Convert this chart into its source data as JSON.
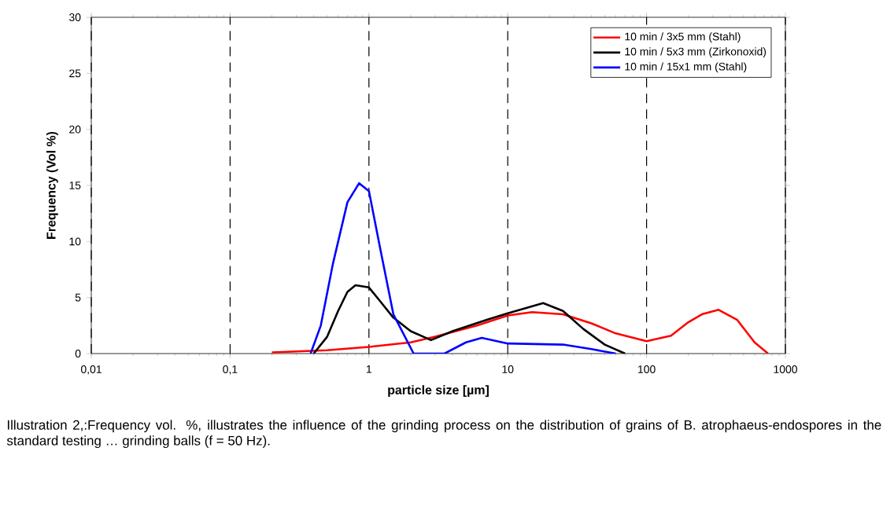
{
  "chart_data": {
    "type": "line",
    "xlabel": "particle size  [µm]",
    "ylabel": "Frequency (Vol %)",
    "log": "x",
    "grid": "x",
    "legend": "top right",
    "marker": "none",
    "line_style": "solid",
    "xlim": [
      0.01,
      1000
    ],
    "xticks": [
      {
        "value": 0.01,
        "label": "0,01"
      },
      {
        "value": 0.1,
        "label": "0,1"
      },
      1,
      10,
      100,
      1000
    ],
    "ylim": [
      0,
      30
    ],
    "yticks": [
      0,
      5,
      10,
      15,
      20,
      25,
      30
    ],
    "series": [
      {
        "name": "10 min / 3x5 mm (Stahl)",
        "color": "#ff0000",
        "x": [
          0.2,
          0.5,
          1,
          2,
          3,
          6,
          10,
          15,
          25,
          40,
          60,
          100,
          150,
          200,
          250,
          330,
          450,
          600,
          750
        ],
        "values": [
          0.1,
          0.3,
          0.6,
          1,
          1.5,
          2.5,
          3.4,
          3.7,
          3.5,
          2.7,
          1.8,
          1.1,
          1.6,
          2.8,
          3.5,
          3.9,
          3,
          1,
          0
        ]
      },
      {
        "name": "10 min / 5x3 mm (Zirkonoxid)",
        "color": "#000000",
        "x": [
          0.4,
          0.5,
          0.6,
          0.7,
          0.8,
          1,
          1.2,
          1.5,
          2,
          2.8,
          4,
          7,
          10,
          18,
          25,
          35,
          50,
          70
        ],
        "values": [
          0,
          1.5,
          3.8,
          5.5,
          6.1,
          5.9,
          4.7,
          3.2,
          2,
          1.2,
          2,
          3,
          3.6,
          4.5,
          3.8,
          2.2,
          0.8,
          0
        ]
      },
      {
        "name": "10 min / 15x1 mm (Stahl)",
        "color": "#0000ff",
        "x": [
          0.38,
          0.45,
          0.55,
          0.7,
          0.85,
          1,
          1.2,
          1.5,
          2.1,
          3.5,
          5,
          6.5,
          10,
          25,
          40,
          60
        ],
        "values": [
          0,
          2.5,
          8,
          13.5,
          15.2,
          14.5,
          9.5,
          3.5,
          0,
          0,
          1,
          1.4,
          0.9,
          0.8,
          0.4,
          0
        ]
      }
    ],
    "annotations": [
      "Illustration 2,:Frequency vol. %, illustrates the influence of the grinding process on the distribution of grains of B. atrophaeus-endospores in the standard testing … grinding balls (f = 50 Hz)."
    ]
  }
}
